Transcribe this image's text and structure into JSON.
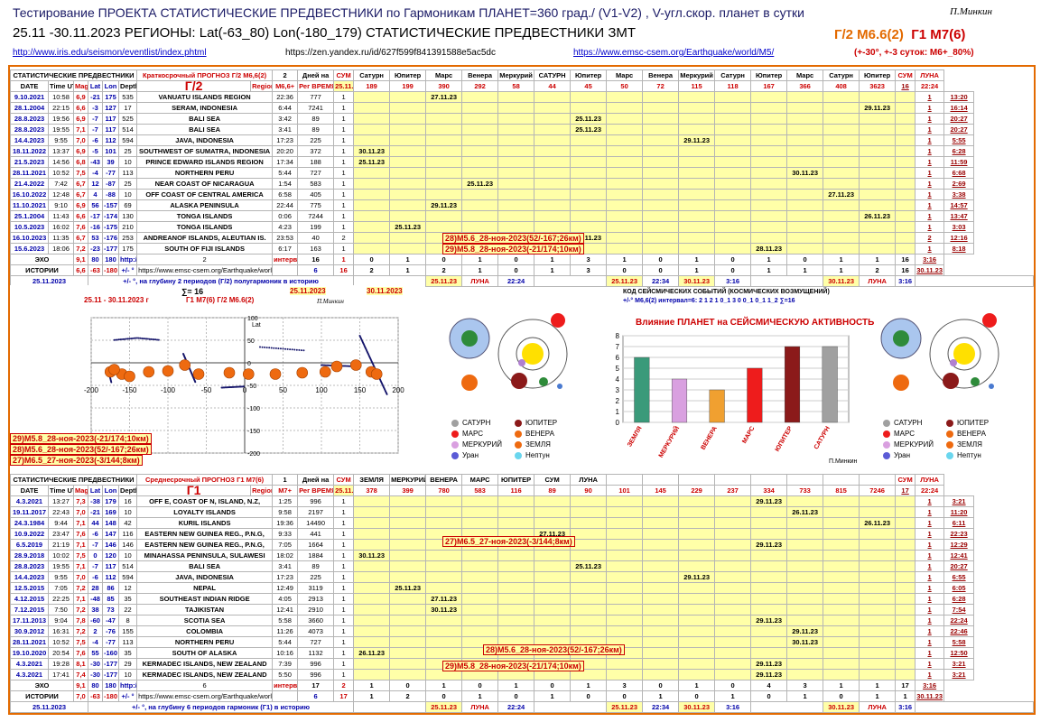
{
  "header": {
    "title": "Тестирование ПРОЕКТА  СТАТИСТИЧЕСКИЕ ПРЕДВЕСТНИКИ  по Гармоникам  ПЛАНЕТ=360 град./ (V1-V2) , V-угл.скор. планет в сутки",
    "author": "П.Минкин",
    "subtitle": "25.11 -30.11.2023   РЕГИОНЫ:  Lat(-63_80) Lon(-180_179) СТАТИСТИЧЕСКИЕ ПРЕДВЕСТНИКИ ЗМТ",
    "g2": "Г/2 М6.6(2)",
    "g1": "Г1 М7(6)",
    "link1": "http://www.iris.edu/seismon/eventlist/index.phtml",
    "link2": "https://zen.yandex.ru/id/627f599f841391588e5ac5dc",
    "link3": "https://www.emsc-csem.org/Earthquake/world/M5/",
    "condition": "(+-30°, +-3 суток: М6+_80%)"
  },
  "t1": {
    "hdr1": [
      "СТАТИСТИЧЕСКИЕ ПРЕДВЕСТНИКИ",
      "Краткосрочный  ПРОГНОЗ  Г/2 М6,6(2)",
      "2",
      "Дней на",
      "СУМ",
      "Сатурн",
      "Юпитер",
      "Марс",
      "Венера",
      "Меркурий",
      "САТУРН",
      "Юпитер",
      "Марс",
      "Венера",
      "Меркурий",
      "Сатурн",
      "Юпитер",
      "Марс",
      "Сатурн",
      "Юпитер",
      "СУМ",
      "ЛУНА"
    ],
    "hdr2": [
      "DATE",
      "Time UTC",
      "Mag",
      "Lat",
      "Lon",
      "Depth km",
      "Г/2",
      "Region",
      "М6,6+",
      "Рег ВРЕМЯ",
      "25.11.2023",
      "16",
      "ЗЕМЛЯ",
      "МЕРКУРИЙ",
      "ВЕНЕРА",
      "МАРС",
      "16",
      "22:24"
    ],
    "hdr3": [
      "189",
      "199",
      "390",
      "292",
      "58",
      "44",
      "45",
      "50",
      "72",
      "115",
      "118",
      "167",
      "366",
      "408",
      "3623"
    ],
    "rows": [
      [
        "9.10.2021",
        "10:58",
        "6,9",
        "-21",
        "175",
        "535",
        "VANUATU ISLANDS REGION",
        "22:36",
        "777",
        "1",
        "",
        "",
        "27.11.23",
        "",
        "",
        "",
        "",
        "",
        "",
        "",
        "",
        "",
        "",
        "",
        "",
        "",
        "1",
        "13:20"
      ],
      [
        "28.1.2004",
        "22:15",
        "6,6",
        "-3",
        "127",
        "17",
        "SERAM, INDONESIA",
        "6:44",
        "7241",
        "1",
        "",
        "",
        "",
        "",
        "",
        "",
        "",
        "",
        "",
        "",
        "",
        "",
        "",
        "",
        "29.11.23",
        "",
        "1",
        "16:14"
      ],
      [
        "28.8.2023",
        "19:56",
        "6,9",
        "-7",
        "117",
        "525",
        "BALI SEA",
        "3:42",
        "89",
        "1",
        "",
        "",
        "",
        "",
        "",
        "",
        "25.11.23",
        "",
        "",
        "",
        "",
        "",
        "",
        "",
        "",
        "",
        "1",
        "20:27"
      ],
      [
        "28.8.2023",
        "19:55",
        "7,1",
        "-7",
        "117",
        "514",
        "BALI SEA",
        "3:41",
        "89",
        "1",
        "",
        "",
        "",
        "",
        "",
        "",
        "25.11.23",
        "",
        "",
        "",
        "",
        "",
        "",
        "",
        "",
        "",
        "1",
        "20:27"
      ],
      [
        "14.4.2023",
        "9:55",
        "7,0",
        "-6",
        "112",
        "594",
        "JAVA, INDONESIA",
        "17:23",
        "225",
        "1",
        "",
        "",
        "",
        "",
        "",
        "",
        "",
        "",
        "",
        "29.11.23",
        "",
        "",
        "",
        "",
        "",
        "",
        "1",
        "5:55"
      ],
      [
        "18.11.2022",
        "13:37",
        "6,9",
        "-5",
        "101",
        "25",
        "SOUTHWEST OF SUMATRA, INDONESIA",
        "20:20",
        "372",
        "1",
        "30.11.23",
        "",
        "",
        "",
        "",
        "",
        "",
        "",
        "",
        "",
        "",
        "",
        "",
        "",
        "",
        "",
        "1",
        "6:28"
      ],
      [
        "21.5.2023",
        "14:56",
        "6,8",
        "-43",
        "39",
        "10",
        "PRINCE EDWARD ISLANDS REGION",
        "17:34",
        "188",
        "1",
        "25.11.23",
        "",
        "",
        "",
        "",
        "",
        "",
        "",
        "",
        "",
        "",
        "",
        "",
        "",
        "",
        "",
        "1",
        "11:59"
      ],
      [
        "28.11.2021",
        "10:52",
        "7,5",
        "-4",
        "-77",
        "113",
        "NORTHERN PERU",
        "5:44",
        "727",
        "1",
        "",
        "",
        "",
        "",
        "",
        "",
        "",
        "",
        "",
        "",
        "",
        "",
        "30.11.23",
        "",
        "",
        "",
        "1",
        "6:68"
      ],
      [
        "21.4.2022",
        "7:42",
        "6,7",
        "12",
        "-87",
        "25",
        "NEAR COAST OF NICARAGUA",
        "1:54",
        "583",
        "1",
        "",
        "",
        "",
        "25.11.23",
        "",
        "",
        "",
        "",
        "",
        "",
        "",
        "",
        "",
        "",
        "",
        "",
        "1",
        "2:69"
      ],
      [
        "16.10.2022",
        "12:48",
        "6,7",
        "4",
        "-88",
        "10",
        "OFF COAST OF CENTRAL AMERICA",
        "6:58",
        "405",
        "1",
        "",
        "",
        "",
        "",
        "",
        "",
        "",
        "",
        "",
        "",
        "",
        "",
        "",
        "27.11.23",
        "",
        "",
        "1",
        "3:38"
      ],
      [
        "11.10.2021",
        "9:10",
        "6,9",
        "56",
        "-157",
        "69",
        "ALASKA PENINSULA",
        "22:44",
        "775",
        "1",
        "",
        "",
        "29.11.23",
        "",
        "",
        "",
        "",
        "",
        "",
        "",
        "",
        "",
        "",
        "",
        "",
        "",
        "1",
        "14:57"
      ],
      [
        "25.1.2004",
        "11:43",
        "6,6",
        "-17",
        "-174",
        "130",
        "TONGA ISLANDS",
        "0:06",
        "7244",
        "1",
        "",
        "",
        "",
        "",
        "",
        "",
        "",
        "",
        "",
        "",
        "",
        "",
        "",
        "",
        "26.11.23",
        "",
        "1",
        "13:47"
      ],
      [
        "10.5.2023",
        "16:02",
        "7,6",
        "-16",
        "-175",
        "210",
        "TONGA ISLANDS",
        "4:23",
        "199",
        "1",
        "",
        "25.11.23",
        "",
        "",
        "",
        "",
        "",
        "",
        "",
        "",
        "",
        "",
        "",
        "",
        "",
        "",
        "1",
        "3:03"
      ],
      [
        "16.10.2023",
        "11:35",
        "6,7",
        "53",
        "-176",
        "253",
        "ANDREANOF ISLANDS, ALEUTIAN IS.",
        "23:53",
        "40",
        "2",
        "",
        "",
        "",
        "",
        "",
        "29.11.23",
        "29.11.23",
        "",
        "",
        "",
        "",
        "",
        "",
        "",
        "",
        "",
        "2",
        "12:16"
      ],
      [
        "15.6.2023",
        "18:06",
        "7,2",
        "-23",
        "-177",
        "175",
        "SOUTH OF FIJI ISLANDS",
        "6:17",
        "163",
        "1",
        "",
        "",
        "",
        "",
        "",
        "",
        "",
        "",
        "",
        "",
        "",
        "28.11.23",
        "",
        "",
        "",
        "",
        "1",
        "8:18"
      ]
    ],
    "ev_a": "28)М5.6_28-ноя-2023(52/-167;26км)",
    "ev_b": "29)М5.8_28-ноя-2023(-21/174;10км)",
    "echo": [
      "ЭХО",
      "9,1",
      "80",
      "180",
      "http://ds.iris.edu/ieb/index.html?format=text&no",
      "2",
      "интервал",
      "16",
      "1",
      "0",
      "1",
      "0",
      "1",
      "0",
      "1",
      "3",
      "1",
      "0",
      "1",
      "0",
      "1",
      "0",
      "1",
      "1",
      "16",
      "3:16"
    ],
    "hist": [
      "ИСТОРИИ",
      "6,6",
      "-63",
      "-180",
      "+/- °",
      "https://www.emsc-csem.org/Earthquake/world/M5/",
      "6",
      "16",
      "2",
      "1",
      "2",
      "1",
      "0",
      "1",
      "3",
      "0",
      "0",
      "1",
      "0",
      "1",
      "1",
      "1",
      "2",
      "16",
      "30.11.23"
    ],
    "foot": [
      "25.11.2023",
      "+/- °, на глубину 2 периодов (Г/2) полугармоник в историю",
      "25.11.23",
      "ЛУНА",
      "22:24",
      "25.11.23",
      "22:34",
      "30.11.23",
      "3:16",
      "30.11.23",
      "ЛУНА",
      "3:16"
    ]
  },
  "mid": {
    "map_title": "25.11 - 30.11.2023 г",
    "map_title2": "Г1 М7(6)  Г/2 М6.6(2)",
    "sigma": "∑= 16",
    "d1": "25.11.2023",
    "d2": "30.11.2023",
    "map_author": "П.Минкин",
    "map_ylabel": "Lat",
    "xticks": [
      "-200",
      "-150",
      "-100",
      "-50",
      "0",
      "50",
      "100",
      "150",
      "200"
    ],
    "yticks": [
      "100",
      "50",
      "0",
      "-50",
      "-100",
      "-150",
      "-200"
    ],
    "ev1": "29)М5.8_28-ноя-2023(-21/174;10км)",
    "ev2": "28)М5.6_28-ноя-2023(52/-167;26км)",
    "ev3": "27)М6.5_27-ноя-2023(-3/144;8км)",
    "code": "КОД СЕЙСМИЧЕСКИХ СОБЫТИЙ (КОСМИЧЕСКИХ ВОЗМУЩЕНИЙ)",
    "code2": "+/-° М6,6(2) интервал=6:  2 1 2 1 0_1 3 0 0_1 0_1 1_2  ∑=16",
    "legend": [
      "САТУРН",
      "ЮПИТЕР",
      "МАРС",
      "ВЕНЕРА",
      "МЕРКУРИЙ",
      "ЗЕМЛЯ",
      "Уран",
      "Нептун"
    ],
    "bar_author": "П.Минкин"
  },
  "chart_data": {
    "type": "bar",
    "title": "Влияние ПЛАНЕТ на СЕЙСМИЧЕСКУЮ АКТИВНОСТЬ",
    "categories": [
      "ЗЕМЛЯ",
      "МЕРКУРИЙ",
      "ВЕНЕРА",
      "МАРС",
      "ЮПИТЕР",
      "САТУРН"
    ],
    "values": [
      6,
      4,
      3,
      5,
      7,
      7
    ],
    "colors": [
      "#3a9a7a",
      "#d9a0e0",
      "#f0a030",
      "#ee1c1c",
      "#8b1a1a",
      "#a0a0a0"
    ],
    "ylim": [
      0,
      8
    ],
    "yticks": [
      "0",
      "1",
      "2",
      "3",
      "4",
      "5",
      "6",
      "7",
      "8"
    ]
  },
  "t2": {
    "hdr1": [
      "СТАТИСТИЧЕСКИЕ ПРЕДВЕСТНИКИ",
      "Среднесрочный  ПРОГНОЗ  Г1 М7(6)",
      "1",
      "Дней на",
      "СУМ",
      "ЗЕМЛЯ",
      "МЕРКУРИЙ",
      "ВЕНЕРА",
      "МАРС",
      "ЮПИТЕР",
      "СУМ",
      "ЛУНА"
    ],
    "hdr2": [
      "DATE",
      "Time UTC",
      "Mag",
      "Lat",
      "Lon",
      "Depth km",
      "Г1",
      "Region",
      "М7+",
      "Рег ВРЕМЯ",
      "25.11.2023",
      "17",
      "17",
      "22:24"
    ],
    "hdr3": [
      "378",
      "399",
      "780",
      "583",
      "116",
      "89",
      "90",
      "101",
      "145",
      "229",
      "237",
      "334",
      "733",
      "815",
      "7246"
    ],
    "rows": [
      [
        "4.3.2021",
        "13:27",
        "7,3",
        "-38",
        "179",
        "16",
        "OFF E, COAST OF N, ISLAND, N.Z,",
        "1:25",
        "996",
        "1",
        "",
        "",
        "",
        "",
        "",
        "",
        "",
        "",
        "",
        "",
        "",
        "29.11.23",
        "",
        "",
        "",
        "",
        "1",
        "3:21"
      ],
      [
        "19.11.2017",
        "22:43",
        "7,0",
        "-21",
        "169",
        "10",
        "LOYALTY ISLANDS",
        "9:58",
        "2197",
        "1",
        "",
        "",
        "",
        "",
        "",
        "",
        "",
        "",
        "",
        "",
        "",
        "",
        "26.11.23",
        "",
        "",
        "",
        "1",
        "11:20"
      ],
      [
        "24.3.1984",
        "9:44",
        "7,1",
        "44",
        "148",
        "42",
        "KURIL ISLANDS",
        "19:36",
        "14490",
        "1",
        "",
        "",
        "",
        "",
        "",
        "",
        "",
        "",
        "",
        "",
        "",
        "",
        "",
        "",
        "26.11.23",
        "",
        "1",
        "6:11"
      ],
      [
        "10.9.2022",
        "23:47",
        "7,6",
        "-6",
        "147",
        "116",
        "EASTERN NEW GUINEA REG., P.N.G,",
        "9:33",
        "441",
        "1",
        "",
        "",
        "",
        "",
        "",
        "27.11.23",
        "",
        "",
        "",
        "",
        "",
        "",
        "",
        "",
        "",
        "",
        "1",
        "22:23"
      ],
      [
        "6.5.2019",
        "21:19",
        "7,1",
        "-7",
        "146",
        "146",
        "EASTERN NEW GUINEA REG., P.N.G,",
        "7:05",
        "1664",
        "1",
        "",
        "",
        "",
        "",
        "",
        "",
        "",
        "",
        "",
        "",
        "",
        "29.11.23",
        "",
        "",
        "",
        "",
        "1",
        "12:29"
      ],
      [
        "28.9.2018",
        "10:02",
        "7,5",
        "0",
        "120",
        "10",
        "MINAHASSA PENINSULA, SULAWESI",
        "18:02",
        "1884",
        "1",
        "30.11.23",
        "",
        "",
        "",
        "",
        "",
        "",
        "",
        "",
        "",
        "",
        "",
        "",
        "",
        "",
        "",
        "1",
        "12:41"
      ],
      [
        "28.8.2023",
        "19:55",
        "7,1",
        "-7",
        "117",
        "514",
        "BALI SEA",
        "3:41",
        "89",
        "1",
        "",
        "",
        "",
        "",
        "",
        "",
        "25.11.23",
        "",
        "",
        "",
        "",
        "",
        "",
        "",
        "",
        "",
        "1",
        "20:27"
      ],
      [
        "14.4.2023",
        "9:55",
        "7,0",
        "-6",
        "112",
        "594",
        "JAVA, INDONESIA",
        "17:23",
        "225",
        "1",
        "",
        "",
        "",
        "",
        "",
        "",
        "",
        "",
        "",
        "29.11.23",
        "",
        "",
        "",
        "",
        "",
        "",
        "1",
        "6:55"
      ],
      [
        "12.5.2015",
        "7:05",
        "7,2",
        "28",
        "86",
        "12",
        "NEPAL",
        "12:49",
        "3119",
        "1",
        "",
        "25.11.23",
        "",
        "",
        "",
        "",
        "",
        "",
        "",
        "",
        "",
        "",
        "",
        "",
        "",
        "",
        "1",
        "6:05"
      ],
      [
        "4.12.2015",
        "22:25",
        "7,1",
        "-48",
        "85",
        "35",
        "SOUTHEAST INDIAN RIDGE",
        "4:05",
        "2913",
        "1",
        "",
        "",
        "27.11.23",
        "",
        "",
        "",
        "",
        "",
        "",
        "",
        "",
        "",
        "",
        "",
        "",
        "",
        "1",
        "6:28"
      ],
      [
        "7.12.2015",
        "7:50",
        "7,2",
        "38",
        "73",
        "22",
        "TAJIKISTAN",
        "12:41",
        "2910",
        "1",
        "",
        "",
        "30.11.23",
        "",
        "",
        "",
        "",
        "",
        "",
        "",
        "",
        "",
        "",
        "",
        "",
        "",
        "1",
        "7:54"
      ],
      [
        "17.11.2013",
        "9:04",
        "7,8",
        "-60",
        "-47",
        "8",
        "SCOTIA SEA",
        "5:58",
        "3660",
        "1",
        "",
        "",
        "",
        "",
        "",
        "",
        "",
        "",
        "",
        "",
        "",
        "29.11.23",
        "",
        "",
        "",
        "",
        "1",
        "22:24"
      ],
      [
        "30.9.2012",
        "16:31",
        "7,2",
        "2",
        "-76",
        "155",
        "COLOMBIA",
        "11:26",
        "4073",
        "1",
        "",
        "",
        "",
        "",
        "",
        "",
        "",
        "",
        "",
        "",
        "",
        "",
        "29.11.23",
        "",
        "",
        "",
        "1",
        "22:46"
      ],
      [
        "28.11.2021",
        "10:52",
        "7,5",
        "-4",
        "-77",
        "113",
        "NORTHERN PERU",
        "5:44",
        "727",
        "1",
        "",
        "",
        "",
        "",
        "",
        "",
        "",
        "",
        "",
        "",
        "",
        "",
        "30.11.23",
        "",
        "",
        "",
        "1",
        "5:58"
      ],
      [
        "19.10.2020",
        "20:54",
        "7,6",
        "55",
        "-160",
        "35",
        "SOUTH OF ALASKA",
        "10:16",
        "1132",
        "1",
        "26.11.23",
        "",
        "",
        "",
        "",
        "",
        "",
        "",
        "",
        "",
        "",
        "",
        "",
        "",
        "",
        "",
        "1",
        "12:50"
      ],
      [
        "4.3.2021",
        "19:28",
        "8,1",
        "-30",
        "-177",
        "29",
        "KERMADEC ISLANDS, NEW ZEALAND",
        "7:39",
        "996",
        "1",
        "",
        "",
        "",
        "",
        "",
        "",
        "",
        "",
        "",
        "",
        "",
        "29.11.23",
        "",
        "",
        "",
        "",
        "1",
        "3:21"
      ],
      [
        "4.3.2021",
        "17:41",
        "7,4",
        "-30",
        "-177",
        "10",
        "KERMADEC ISLANDS, NEW ZEALAND",
        "5:50",
        "996",
        "1",
        "",
        "",
        "",
        "",
        "",
        "",
        "",
        "",
        "",
        "",
        "",
        "29.11.23",
        "",
        "",
        "",
        "",
        "1",
        "3:21"
      ]
    ],
    "ev_a": "27)М6.5_27-ноя-2023(-3/144;8км)",
    "ev_b": "28)М5.6_28-ноя-2023(52/-167;26км)",
    "ev_c": "29)М5.8_28-ноя-2023(-21/174;10км)",
    "echo": [
      "ЭХО",
      "9,1",
      "80",
      "180",
      "http://ds.iris.edu/ieb/index.html?format=text&no",
      "6",
      "интервал",
      "17",
      "2",
      "1",
      "0",
      "1",
      "0",
      "1",
      "0",
      "1",
      "3",
      "0",
      "1",
      "0",
      "4",
      "3",
      "1",
      "1",
      "17",
      "3:16"
    ],
    "hist": [
      "ИСТОРИИ",
      "7,0",
      "-63",
      "-180",
      "+/- °",
      "https://www.emsc-csem.org/Earthquake/world/M5/",
      "6",
      "17",
      "1",
      "2",
      "0",
      "1",
      "0",
      "1",
      "0",
      "0",
      "1",
      "0",
      "1",
      "0",
      "1",
      "0",
      "1",
      "1",
      "17",
      "30.11.23"
    ],
    "foot": [
      "25.11.2023",
      "+/- °, на глубину 6 периодов гармоник (Г1) в историю",
      "25.11.23",
      "ЛУНА",
      "22:24",
      "25.11.23",
      "22:34",
      "30.11.23",
      "3:16",
      "30.11.23",
      "ЛУНА",
      "3:16"
    ]
  }
}
